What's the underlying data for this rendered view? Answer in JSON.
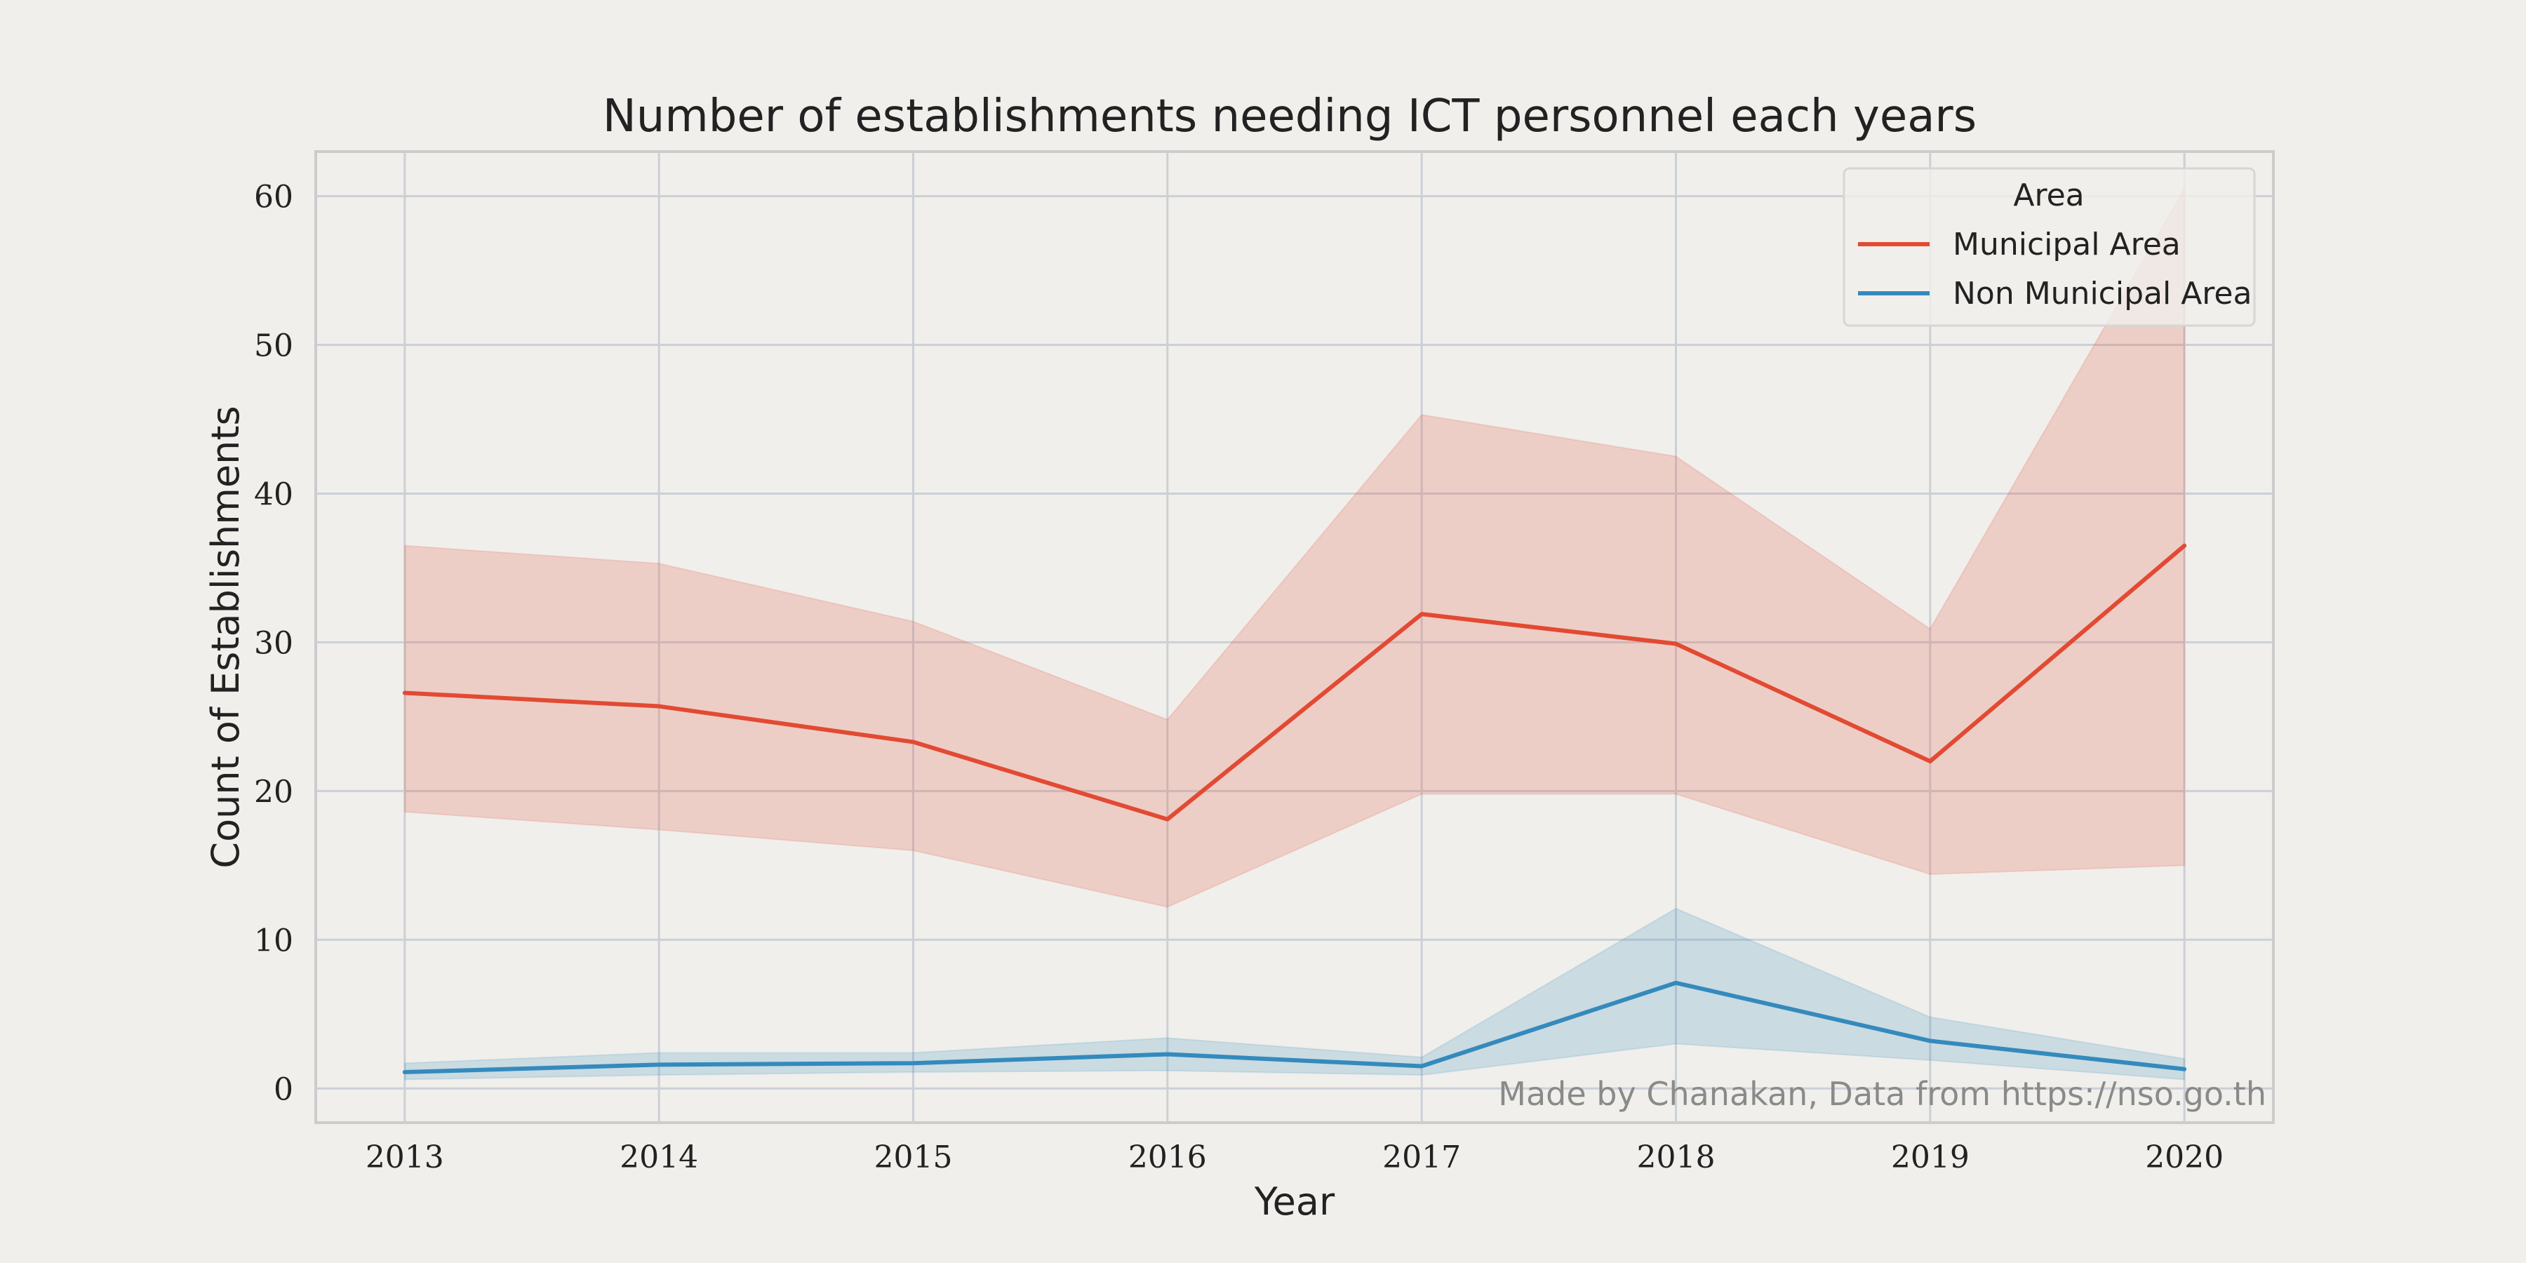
{
  "chart_data": {
    "type": "line",
    "title": "Number of establishments needing ICT personnel each years",
    "xlabel": "Year",
    "ylabel": "Count of Establishments",
    "x": [
      2013,
      2014,
      2015,
      2016,
      2017,
      2018,
      2019,
      2020
    ],
    "x_tick_labels": [
      "2013",
      "2014",
      "2015",
      "2016",
      "2017",
      "2018",
      "2019",
      "2020"
    ],
    "y_ticks": [
      0,
      10,
      20,
      30,
      40,
      50,
      60
    ],
    "y_tick_labels": [
      "0",
      "10",
      "20",
      "30",
      "40",
      "50",
      "60"
    ],
    "xlim": [
      2012.65,
      2020.35
    ],
    "ylim": [
      -2.3,
      63.0
    ],
    "grid": true,
    "legend": {
      "title": "Area",
      "placement": "top-right"
    },
    "series": [
      {
        "name": "Municipal Area",
        "color": "#e24a33",
        "values": [
          26.6,
          25.7,
          23.3,
          18.1,
          31.9,
          29.9,
          22.0,
          36.5
        ],
        "ci_lower": [
          18.6,
          17.4,
          16.0,
          12.2,
          19.8,
          19.8,
          14.4,
          15.0
        ],
        "ci_upper": [
          36.5,
          35.3,
          31.4,
          24.8,
          45.3,
          42.5,
          30.9,
          60.5
        ]
      },
      {
        "name": "Non Municipal Area",
        "color": "#348abd",
        "values": [
          1.1,
          1.6,
          1.7,
          2.3,
          1.5,
          7.1,
          3.2,
          1.3
        ],
        "ci_lower": [
          0.6,
          0.9,
          1.1,
          1.2,
          0.9,
          3.0,
          1.9,
          0.6
        ],
        "ci_upper": [
          1.7,
          2.4,
          2.4,
          3.4,
          2.1,
          12.1,
          4.8,
          2.0
        ]
      }
    ],
    "annotation": "Made by Chanakan, Data from https://nso.go.th"
  }
}
